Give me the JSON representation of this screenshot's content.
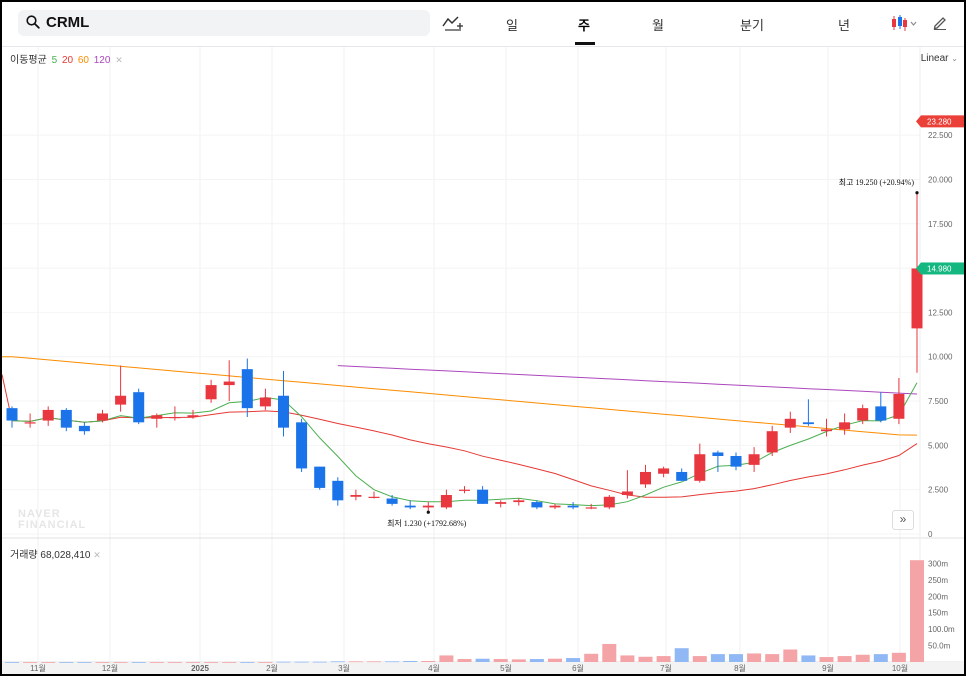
{
  "search": {
    "symbol": "CRML"
  },
  "periods": [
    {
      "label": "일"
    },
    {
      "label": "주"
    },
    {
      "label": "월"
    },
    {
      "label": "분기"
    },
    {
      "label": "년"
    }
  ],
  "active_period": "주",
  "icons": {
    "search": "search-icon",
    "compare": "compare-chart-icon",
    "chart_type": "candlestick-icon",
    "draw": "pencil-icon",
    "expand": "double-chevron-right-icon"
  },
  "legend": {
    "ma_label": "이동평균",
    "ma_periods": [
      "5",
      "20",
      "60",
      "120"
    ],
    "ma_colors": [
      "#4caf50",
      "#e53935",
      "#fb8c00",
      "#ab47bc"
    ],
    "volume_label": "거래량",
    "volume_value": "68,028,410"
  },
  "scale_mode": "Linear",
  "watermark": [
    "NAVER",
    "FINANCIAL"
  ],
  "colors": {
    "up": "#e9373f",
    "down": "#1a73e8",
    "current_price_tag": "#ea4038",
    "prev_tag": "#14b780"
  },
  "price_tags": {
    "current": "23.280",
    "other": "14.980"
  },
  "annotations": {
    "high": "최고  19.250 (+20.94%)",
    "low": "최저  1.230 (+1792.68%)"
  },
  "chart_data": {
    "type": "candlestick",
    "y_ticks": [
      "0",
      "2.500",
      "5.000",
      "7.500",
      "10.000",
      "12.500",
      "15.000",
      "17.500",
      "20.000",
      "22.500"
    ],
    "ylim": [
      0,
      25.5
    ],
    "volume_ticks": [
      "50.0m",
      "100.0m",
      "150m",
      "200m",
      "250m",
      "300m"
    ],
    "volume_max": 335,
    "x_ticks": [
      "11월",
      "12월",
      "2025",
      "2월",
      "3월",
      "4월",
      "5월",
      "6월",
      "7월",
      "8월",
      "9월",
      "10월"
    ],
    "candles": [
      [
        7.1,
        7.2,
        6.0,
        6.4
      ],
      [
        6.3,
        6.8,
        6.0,
        6.3
      ],
      [
        6.4,
        7.2,
        6.1,
        7.0
      ],
      [
        7.0,
        7.1,
        5.8,
        6.0
      ],
      [
        6.1,
        6.3,
        5.6,
        5.8
      ],
      [
        6.4,
        7.0,
        6.3,
        6.8
      ],
      [
        7.3,
        9.5,
        6.9,
        7.8
      ],
      [
        8.0,
        8.2,
        6.2,
        6.3
      ],
      [
        6.5,
        6.8,
        6.0,
        6.7
      ],
      [
        6.6,
        7.2,
        6.4,
        6.6
      ],
      [
        6.6,
        7.0,
        6.5,
        6.7
      ],
      [
        7.6,
        8.7,
        7.4,
        8.4
      ],
      [
        8.4,
        9.8,
        7.5,
        8.6
      ],
      [
        9.3,
        9.9,
        6.6,
        7.1
      ],
      [
        7.2,
        8.2,
        7.0,
        7.7
      ],
      [
        7.8,
        9.2,
        5.5,
        6.0
      ],
      [
        6.3,
        6.5,
        3.5,
        3.7
      ],
      [
        3.8,
        3.8,
        2.5,
        2.6
      ],
      [
        3.0,
        3.2,
        1.6,
        1.9
      ],
      [
        2.1,
        2.5,
        1.9,
        2.2
      ],
      [
        2.1,
        2.4,
        2.0,
        2.1
      ],
      [
        2.0,
        2.2,
        1.6,
        1.7
      ],
      [
        1.6,
        1.9,
        1.4,
        1.5
      ],
      [
        1.5,
        1.8,
        1.2,
        1.6
      ],
      [
        1.5,
        2.5,
        1.4,
        2.2
      ],
      [
        2.5,
        2.7,
        2.3,
        2.5
      ],
      [
        2.5,
        2.7,
        1.7,
        1.7
      ],
      [
        1.7,
        1.9,
        1.5,
        1.8
      ],
      [
        1.8,
        2.0,
        1.6,
        1.9
      ],
      [
        1.8,
        1.9,
        1.4,
        1.5
      ],
      [
        1.5,
        1.7,
        1.4,
        1.6
      ],
      [
        1.6,
        1.8,
        1.4,
        1.5
      ],
      [
        1.5,
        1.7,
        1.4,
        1.5
      ],
      [
        1.5,
        2.2,
        1.4,
        2.1
      ],
      [
        2.2,
        3.6,
        2.0,
        2.4
      ],
      [
        2.8,
        3.9,
        2.6,
        3.5
      ],
      [
        3.4,
        3.8,
        3.2,
        3.7
      ],
      [
        3.5,
        3.7,
        3.0,
        3.0
      ],
      [
        3.0,
        5.1,
        2.9,
        4.5
      ],
      [
        4.6,
        4.7,
        3.5,
        4.4
      ],
      [
        4.4,
        4.6,
        3.6,
        3.8
      ],
      [
        3.9,
        4.9,
        3.5,
        4.5
      ],
      [
        4.6,
        6.1,
        4.4,
        5.8
      ],
      [
        6.0,
        6.9,
        5.7,
        6.5
      ],
      [
        6.3,
        7.6,
        6.1,
        6.2
      ],
      [
        5.8,
        6.5,
        5.5,
        5.9
      ],
      [
        5.9,
        6.8,
        5.6,
        6.3
      ],
      [
        6.4,
        7.3,
        6.2,
        7.1
      ],
      [
        7.2,
        8.0,
        6.3,
        6.4
      ],
      [
        6.5,
        8.8,
        6.2,
        7.9
      ],
      [
        11.6,
        19.25,
        9.1,
        14.98
      ]
    ],
    "volume": [
      0,
      0,
      0,
      0,
      0,
      0,
      0,
      0,
      0,
      0,
      0,
      0,
      0,
      0,
      0,
      1,
      1,
      1,
      2,
      2,
      2,
      2,
      3,
      3,
      20,
      9,
      10,
      9,
      8,
      9,
      10,
      12,
      25,
      55,
      20,
      16,
      18,
      42,
      18,
      24,
      24,
      26,
      24,
      38,
      20,
      15,
      18,
      22,
      24,
      28,
      310
    ]
  }
}
